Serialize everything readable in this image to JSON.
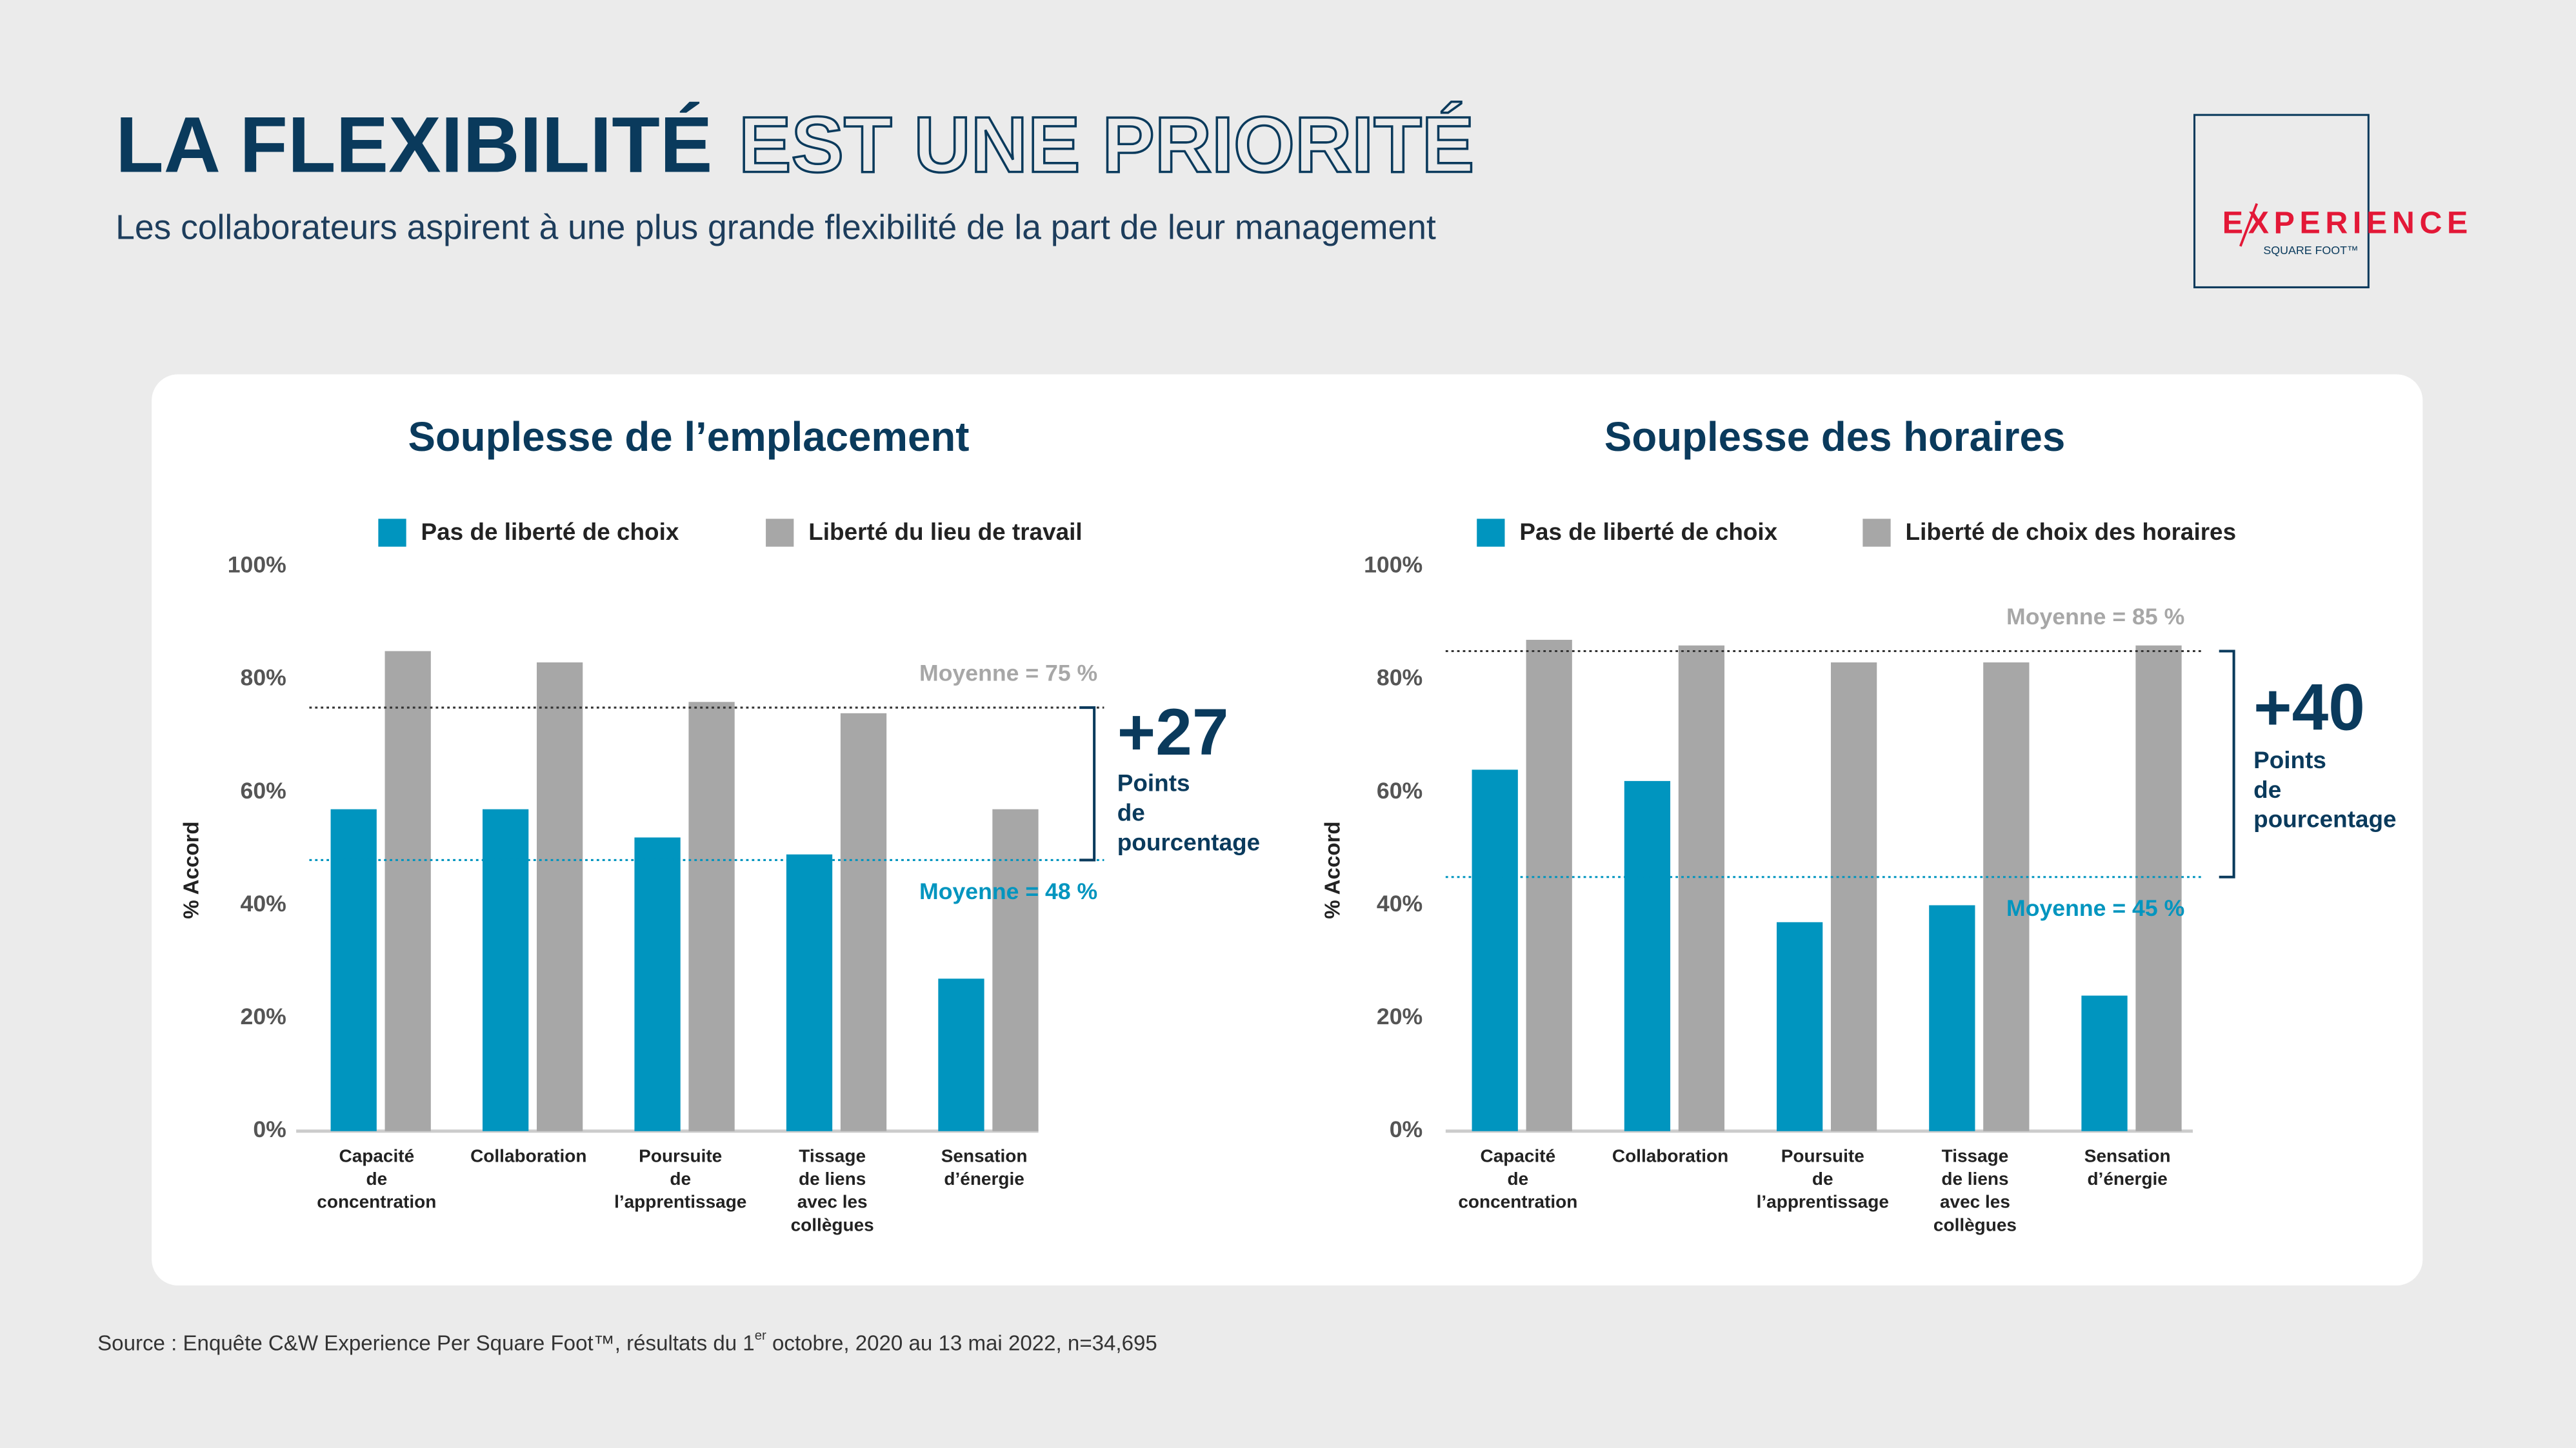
{
  "header": {
    "title_bold": "LA FLEXIBILITÉ",
    "title_outline": "EST UNE PRIORITÉ",
    "subtitle": "Les collaborateurs aspirent à une plus grande flexibilité de la part de leur management"
  },
  "logo": {
    "name": "EXPERIENCE",
    "tagline": "SQUARE FOOT™"
  },
  "chart_data": [
    {
      "type": "bar",
      "title": "Souplesse de l’emplacement",
      "y_label": "% Accord",
      "categories": [
        "Capacité\nde\nconcentration",
        "Collaboration",
        "Poursuite\nde\nl’apprentissage",
        "Tissage\nde liens\navec les\ncollègues",
        "Sensation\nd’énergie"
      ],
      "series": [
        {
          "name": "Pas de liberté de choix",
          "color": "#0095bf",
          "values": [
            57,
            57,
            52,
            49,
            27
          ]
        },
        {
          "name": "Liberté du lieu de travail",
          "color": "#a7a7a7",
          "values": [
            85,
            83,
            76,
            74,
            57
          ]
        }
      ],
      "ylim": [
        0,
        100
      ],
      "yticks": [
        {
          "value": 0,
          "label": "0%"
        },
        {
          "value": 20,
          "label": "20%"
        },
        {
          "value": 40,
          "label": "40%"
        },
        {
          "value": 60,
          "label": "60%"
        },
        {
          "value": 80,
          "label": "80%"
        },
        {
          "value": 100,
          "label": "100%"
        }
      ],
      "reference_lines": [
        {
          "value": 75,
          "label": "Moyenne = 75 %",
          "color": "#a7a7a7"
        },
        {
          "value": 48,
          "label": "Moyenne = 48 %",
          "color": "#0095bf"
        }
      ],
      "annotation": {
        "value": "+27",
        "text": "Points\nde\npourcentage"
      }
    },
    {
      "type": "bar",
      "title": "Souplesse des horaires",
      "y_label": "% Accord",
      "categories": [
        "Capacité\nde\nconcentration",
        "Collaboration",
        "Poursuite\nde\nl’apprentissage",
        "Tissage\nde liens\navec les\ncollègues",
        "Sensation\nd’énergie"
      ],
      "series": [
        {
          "name": "Pas de liberté de choix",
          "color": "#0095bf",
          "values": [
            64,
            62,
            37,
            40,
            24
          ]
        },
        {
          "name": "Liberté de choix des horaires",
          "color": "#a7a7a7",
          "values": [
            87,
            86,
            83,
            83,
            86
          ]
        }
      ],
      "ylim": [
        0,
        100
      ],
      "yticks": [
        {
          "value": 0,
          "label": "0%"
        },
        {
          "value": 20,
          "label": "20%"
        },
        {
          "value": 40,
          "label": "40%"
        },
        {
          "value": 60,
          "label": "60%"
        },
        {
          "value": 80,
          "label": "80%"
        },
        {
          "value": 100,
          "label": "100%"
        }
      ],
      "reference_lines": [
        {
          "value": 85,
          "label": "Moyenne = 85 %",
          "color": "#a7a7a7"
        },
        {
          "value": 45,
          "label": "Moyenne = 45 %",
          "color": "#0095bf"
        }
      ],
      "annotation": {
        "value": "+40",
        "text": "Points\nde\npourcentage"
      }
    }
  ],
  "source": {
    "text": "Source : Enquête C&W Experience Per Square Foot™, résultats du 1",
    "superscript": "er",
    "text_end": " octobre, 2020 au 13 mai 2022, n=34,695"
  }
}
